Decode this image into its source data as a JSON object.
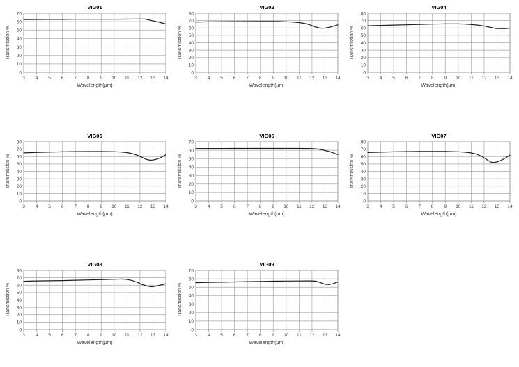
{
  "page": {
    "background": "#ffffff"
  },
  "style": {
    "grid_color": "#a6a6a6",
    "border_color": "#9a9a9a",
    "tick_color": "#8c8c8c",
    "line_color": "#1c1c1c",
    "title_color": "#000000",
    "label_color": "#333333"
  },
  "chart_data": [
    {
      "type": "line",
      "title": "VIG01",
      "xlabel": "Wavelength(μm)",
      "ylabel": "Transmission %",
      "xlim": [
        3,
        14
      ],
      "ylim": [
        0,
        70
      ],
      "xticks": [
        3,
        4,
        5,
        6,
        7,
        8,
        9,
        10,
        11,
        12,
        13,
        14
      ],
      "yticks": [
        0,
        10,
        20,
        30,
        40,
        50,
        60,
        70
      ],
      "grid": true,
      "legend": "none",
      "series": [
        {
          "name": "transmission",
          "points": [
            [
              3,
              62.5
            ],
            [
              4,
              62.6
            ],
            [
              5,
              62.7
            ],
            [
              6,
              62.7
            ],
            [
              7,
              62.8
            ],
            [
              8,
              62.8
            ],
            [
              9,
              62.8
            ],
            [
              10,
              62.9
            ],
            [
              11,
              63.0
            ],
            [
              12,
              63.2
            ],
            [
              12.4,
              63.0
            ],
            [
              13,
              61.0
            ],
            [
              13.5,
              59.3
            ],
            [
              14,
              57.2
            ]
          ]
        }
      ]
    },
    {
      "type": "line",
      "title": "VIG02",
      "xlabel": "Wavelength(μm)",
      "ylabel": "Transmission %",
      "xlim": [
        3,
        14
      ],
      "ylim": [
        0,
        80
      ],
      "xticks": [
        3,
        4,
        5,
        6,
        7,
        8,
        9,
        10,
        11,
        12,
        13,
        14
      ],
      "yticks": [
        0,
        10,
        20,
        30,
        40,
        50,
        60,
        70,
        80
      ],
      "grid": true,
      "legend": "none",
      "series": [
        {
          "name": "transmission",
          "points": [
            [
              3,
              68.0
            ],
            [
              4,
              68.3
            ],
            [
              5,
              68.5
            ],
            [
              6,
              68.6
            ],
            [
              7,
              68.7
            ],
            [
              8,
              68.8
            ],
            [
              9,
              68.8
            ],
            [
              9.5,
              68.7
            ],
            [
              10,
              68.4
            ],
            [
              10.5,
              68.0
            ],
            [
              11,
              67.3
            ],
            [
              11.4,
              66.3
            ],
            [
              11.8,
              64.5
            ],
            [
              12.2,
              61.8
            ],
            [
              12.5,
              60.2
            ],
            [
              12.7,
              59.6
            ],
            [
              13,
              59.8
            ],
            [
              13.3,
              60.8
            ],
            [
              13.6,
              62.2
            ],
            [
              14,
              64.2
            ]
          ]
        }
      ]
    },
    {
      "type": "line",
      "title": "VIG04",
      "xlabel": "Wavelength(μm)",
      "ylabel": "Transmission %",
      "xlim": [
        3,
        14
      ],
      "ylim": [
        0,
        80
      ],
      "xticks": [
        3,
        4,
        5,
        6,
        7,
        8,
        9,
        10,
        11,
        12,
        13,
        14
      ],
      "yticks": [
        0,
        10,
        20,
        30,
        40,
        50,
        60,
        70,
        80
      ],
      "grid": true,
      "legend": "none",
      "series": [
        {
          "name": "transmission",
          "points": [
            [
              3,
              63.0
            ],
            [
              4,
              63.4
            ],
            [
              5,
              63.9
            ],
            [
              6,
              64.3
            ],
            [
              7,
              64.8
            ],
            [
              8,
              65.2
            ],
            [
              9,
              65.5
            ],
            [
              9.5,
              65.6
            ],
            [
              10,
              65.5
            ],
            [
              10.5,
              65.2
            ],
            [
              11,
              64.7
            ],
            [
              11.5,
              63.9
            ],
            [
              12,
              62.7
            ],
            [
              12.4,
              61.2
            ],
            [
              12.8,
              59.7
            ],
            [
              13,
              59.2
            ],
            [
              13.4,
              59.0
            ],
            [
              13.7,
              59.2
            ],
            [
              14,
              59.8
            ]
          ]
        }
      ]
    },
    {
      "type": "line",
      "title": "VIG05",
      "xlabel": "Wavelength(μm)",
      "ylabel": "Transmission %",
      "xlim": [
        3,
        14
      ],
      "ylim": [
        0,
        80
      ],
      "xticks": [
        3,
        4,
        5,
        6,
        7,
        8,
        9,
        10,
        11,
        12,
        13,
        14
      ],
      "yticks": [
        0,
        10,
        20,
        30,
        40,
        50,
        60,
        70,
        80
      ],
      "grid": true,
      "legend": "none",
      "series": [
        {
          "name": "transmission",
          "points": [
            [
              3,
              65.0
            ],
            [
              4,
              65.6
            ],
            [
              5,
              66.1
            ],
            [
              6,
              66.4
            ],
            [
              7,
              66.7
            ],
            [
              8,
              66.8
            ],
            [
              9,
              66.8
            ],
            [
              10,
              66.6
            ],
            [
              10.5,
              66.2
            ],
            [
              11,
              65.4
            ],
            [
              11.4,
              64.0
            ],
            [
              11.8,
              61.8
            ],
            [
              12.2,
              58.5
            ],
            [
              12.5,
              56.2
            ],
            [
              12.8,
              55.1
            ],
            [
              13,
              55.3
            ],
            [
              13.3,
              56.5
            ],
            [
              13.6,
              58.5
            ],
            [
              14,
              62.5
            ]
          ]
        }
      ]
    },
    {
      "type": "line",
      "title": "VIG06",
      "xlabel": "Wavelength(μm)",
      "ylabel": "Transmission %",
      "xlim": [
        3,
        14
      ],
      "ylim": [
        0,
        70
      ],
      "xticks": [
        3,
        4,
        5,
        6,
        7,
        8,
        9,
        10,
        11,
        12,
        13,
        14
      ],
      "yticks": [
        0,
        10,
        20,
        30,
        40,
        50,
        60,
        70
      ],
      "grid": true,
      "legend": "none",
      "series": [
        {
          "name": "transmission",
          "points": [
            [
              3,
              62.0
            ],
            [
              4,
              62.1
            ],
            [
              5,
              62.1
            ],
            [
              6,
              62.2
            ],
            [
              7,
              62.2
            ],
            [
              8,
              62.2
            ],
            [
              9,
              62.2
            ],
            [
              10,
              62.2
            ],
            [
              11,
              62.2
            ],
            [
              12,
              62.0
            ],
            [
              12.4,
              61.6
            ],
            [
              12.8,
              60.5
            ],
            [
              13.2,
              59.0
            ],
            [
              13.6,
              57.2
            ],
            [
              14,
              54.8
            ]
          ]
        }
      ]
    },
    {
      "type": "line",
      "title": "VIG07",
      "xlabel": "Wavelength(μm)",
      "ylabel": "Transmission %",
      "xlim": [
        3,
        14
      ],
      "ylim": [
        0,
        80
      ],
      "xticks": [
        3,
        4,
        5,
        6,
        7,
        8,
        9,
        10,
        11,
        12,
        13,
        14
      ],
      "yticks": [
        0,
        10,
        20,
        30,
        40,
        50,
        60,
        70,
        80
      ],
      "grid": true,
      "legend": "none",
      "series": [
        {
          "name": "transmission",
          "points": [
            [
              3,
              65.5
            ],
            [
              4,
              66.0
            ],
            [
              5,
              66.4
            ],
            [
              6,
              66.7
            ],
            [
              7,
              66.9
            ],
            [
              8,
              67.0
            ],
            [
              9,
              66.9
            ],
            [
              10,
              66.5
            ],
            [
              10.5,
              66.0
            ],
            [
              11,
              65.0
            ],
            [
              11.4,
              63.3
            ],
            [
              11.8,
              60.5
            ],
            [
              12.2,
              56.0
            ],
            [
              12.5,
              52.8
            ],
            [
              12.7,
              52.0
            ],
            [
              13,
              52.8
            ],
            [
              13.3,
              54.8
            ],
            [
              13.6,
              57.5
            ],
            [
              14,
              62.0
            ]
          ]
        }
      ]
    },
    {
      "type": "line",
      "title": "VIG08",
      "xlabel": "Wavelength(μm)",
      "ylabel": "Transmission %",
      "xlim": [
        3,
        14
      ],
      "ylim": [
        0,
        80
      ],
      "xticks": [
        3,
        4,
        5,
        6,
        7,
        8,
        9,
        10,
        11,
        12,
        13,
        14
      ],
      "yticks": [
        0,
        10,
        20,
        30,
        40,
        50,
        60,
        70,
        80
      ],
      "grid": true,
      "legend": "none",
      "series": [
        {
          "name": "transmission",
          "points": [
            [
              3,
              65.3
            ],
            [
              4,
              65.8
            ],
            [
              5,
              66.0
            ],
            [
              6,
              66.3
            ],
            [
              7,
              66.7
            ],
            [
              8,
              67.1
            ],
            [
              9,
              67.5
            ],
            [
              10,
              68.0
            ],
            [
              10.6,
              68.3
            ],
            [
              11,
              67.8
            ],
            [
              11.4,
              66.3
            ],
            [
              11.8,
              63.8
            ],
            [
              12.2,
              60.8
            ],
            [
              12.6,
              58.5
            ],
            [
              12.9,
              57.9
            ],
            [
              13.2,
              58.5
            ],
            [
              13.5,
              59.8
            ],
            [
              13.8,
              61.0
            ],
            [
              14,
              62.0
            ]
          ]
        }
      ]
    },
    {
      "type": "line",
      "title": "VIG09",
      "xlabel": "Wavelength(μm)",
      "ylabel": "Transmission %",
      "xlim": [
        3,
        14
      ],
      "ylim": [
        0,
        70
      ],
      "xticks": [
        3,
        4,
        5,
        6,
        7,
        8,
        9,
        10,
        11,
        12,
        13,
        14
      ],
      "yticks": [
        0,
        10,
        20,
        30,
        40,
        50,
        60,
        70
      ],
      "grid": true,
      "legend": "none",
      "series": [
        {
          "name": "transmission",
          "points": [
            [
              3,
              55.5
            ],
            [
              4,
              55.8
            ],
            [
              5,
              56.1
            ],
            [
              6,
              56.4
            ],
            [
              7,
              56.7
            ],
            [
              8,
              57.0
            ],
            [
              9,
              57.2
            ],
            [
              10,
              57.4
            ],
            [
              11,
              57.5
            ],
            [
              11.6,
              57.6
            ],
            [
              12,
              57.6
            ],
            [
              12.3,
              57.2
            ],
            [
              12.6,
              55.8
            ],
            [
              13,
              53.6
            ],
            [
              13.3,
              53.3
            ],
            [
              13.6,
              54.2
            ],
            [
              14,
              56.3
            ]
          ]
        }
      ]
    }
  ]
}
